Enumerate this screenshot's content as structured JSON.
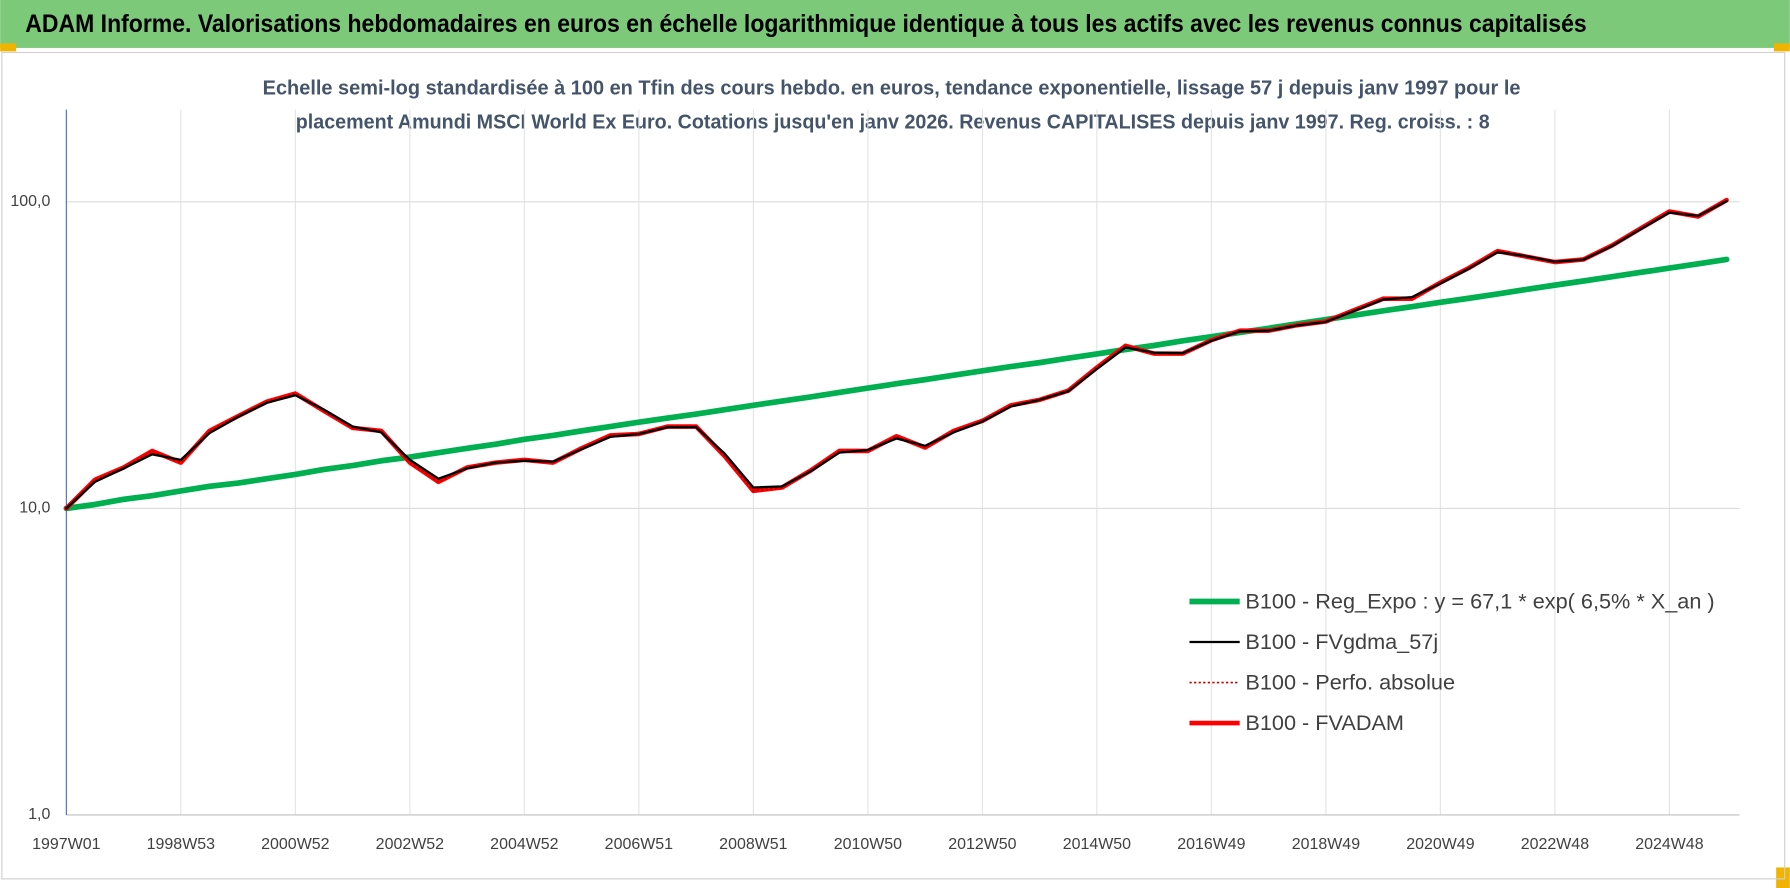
{
  "chart_data": {
    "type": "line",
    "title": "ADAM Informe. Valorisations hebdomadaires en euros en échelle logarithmique identique à tous les actifs avec les revenus connus capitalisés",
    "subtitle": [
      "Echelle semi-log standardisée à 100 en Tfin des cours hebdo. en euros, tendance exponentielle, lissage 57 j depuis janv 1997 pour le",
      "placement Amundi MSCI  World Ex Euro. Cotations jusqu'en janv 2026. Revenus CAPITALISES depuis janv 1997.  Reg. croiss. : 8"
    ],
    "categories": [
      "1997W01",
      null,
      null,
      null,
      "1998W53",
      null,
      null,
      null,
      "2000W52",
      null,
      null,
      null,
      "2002W52",
      null,
      null,
      null,
      "2004W52",
      null,
      null,
      null,
      "2006W51",
      null,
      null,
      null,
      "2008W51",
      null,
      null,
      null,
      "2010W50",
      null,
      null,
      null,
      "2012W50",
      null,
      null,
      null,
      "2014W50",
      null,
      null,
      null,
      "2016W49",
      null,
      null,
      null,
      "2018W49",
      null,
      null,
      null,
      "2020W49",
      null,
      null,
      null,
      "2022W48",
      null,
      null,
      null,
      "2024W48",
      null,
      null
    ],
    "series": [
      {
        "name": "B100 - Reg_Expo : y = 67,1 * exp( 6,5% *  X_an )",
        "color": "#00b050",
        "width": 5,
        "dash": null,
        "values": [
          10.0,
          10.3,
          10.7,
          11.0,
          11.4,
          11.8,
          12.1,
          12.5,
          12.9,
          13.4,
          13.8,
          14.3,
          14.7,
          15.2,
          15.7,
          16.2,
          16.8,
          17.3,
          17.9,
          18.5,
          19.1,
          19.7,
          20.3,
          21.0,
          21.7,
          22.4,
          23.1,
          23.9,
          24.7,
          25.5,
          26.3,
          27.2,
          28.1,
          29.0,
          29.9,
          30.9,
          31.9,
          33.0,
          34.0,
          35.2,
          36.3,
          37.5,
          38.7,
          40.0,
          41.3,
          42.7,
          44.1,
          45.5,
          47.0,
          48.5,
          50.1,
          51.8,
          53.5,
          55.2,
          57.0,
          58.9,
          60.8,
          62.8,
          64.9
        ]
      },
      {
        "name": "B100 - FVgdma_57j",
        "color": "#000000",
        "width": 2,
        "dash": null,
        "values": [
          10.0,
          12.2,
          13.5,
          15.0,
          14.4,
          17.6,
          19.9,
          22.1,
          23.4,
          21.0,
          18.5,
          17.7,
          14.4,
          12.5,
          13.5,
          14.1,
          14.3,
          14.2,
          15.6,
          17.1,
          17.5,
          18.4,
          18.4,
          15.1,
          11.7,
          11.8,
          13.2,
          15.2,
          15.5,
          16.9,
          16.0,
          17.7,
          19.2,
          21.5,
          22.6,
          24.1,
          28.5,
          33.5,
          32.2,
          32.1,
          35.2,
          37.8,
          38.0,
          39.5,
          40.6,
          44.1,
          48.0,
          48.9,
          54.1,
          60.6,
          68.5,
          66.5,
          63.8,
          64.8,
          71.8,
          81.5,
          92.2,
          90.0,
          100.5
        ]
      },
      {
        "name": "B100 - Perfo. absolue",
        "color": "#c00000",
        "width": 1.5,
        "dash": "2 2",
        "values": [
          10.0,
          12.4,
          13.6,
          15.4,
          14.1,
          17.9,
          20.0,
          22.3,
          23.7,
          20.8,
          18.3,
          17.9,
          14.1,
          12.2,
          13.6,
          14.1,
          14.4,
          14.1,
          15.7,
          17.3,
          17.5,
          18.5,
          18.5,
          14.8,
          11.4,
          11.7,
          13.3,
          15.4,
          15.4,
          17.2,
          15.8,
          17.9,
          19.3,
          21.7,
          22.6,
          24.2,
          28.8,
          33.9,
          32.0,
          32.0,
          35.4,
          38.0,
          38.0,
          39.6,
          40.7,
          44.4,
          48.3,
          48.3,
          54.5,
          60.9,
          69.1,
          66.3,
          63.6,
          64.9,
          72.1,
          82.0,
          93.0,
          89.6,
          101.3
        ]
      },
      {
        "name": "B100 - FVADAM",
        "color": "#ff0000",
        "width": 4,
        "dash": null,
        "values": [
          10.0,
          12.4,
          13.6,
          15.4,
          14.1,
          17.9,
          20.0,
          22.3,
          23.7,
          20.8,
          18.3,
          17.9,
          14.1,
          12.2,
          13.6,
          14.1,
          14.4,
          14.1,
          15.7,
          17.3,
          17.5,
          18.5,
          18.5,
          14.8,
          11.4,
          11.7,
          13.3,
          15.4,
          15.4,
          17.2,
          15.8,
          17.9,
          19.3,
          21.7,
          22.6,
          24.2,
          28.8,
          33.9,
          32.0,
          32.0,
          35.4,
          38.0,
          38.0,
          39.6,
          40.7,
          44.4,
          48.3,
          48.3,
          54.5,
          60.9,
          69.1,
          66.3,
          63.6,
          64.9,
          72.1,
          82.0,
          93.0,
          89.6,
          101.3
        ]
      }
    ],
    "draw_order": [
      0,
      3,
      2,
      1
    ],
    "log_y": true,
    "ylim": [
      1,
      200
    ],
    "yticks": [
      {
        "value": 1,
        "label": "1,0"
      },
      {
        "value": 10,
        "label": "10,0"
      },
      {
        "value": 100,
        "label": "100,0"
      }
    ],
    "grid": true,
    "legend": "lower right"
  }
}
